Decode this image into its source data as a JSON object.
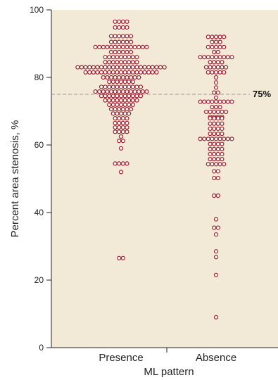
{
  "chart_data": {
    "type": "scatter",
    "style": "dot-plot",
    "xlabel": "ML pattern",
    "ylabel": "Percent area stenosis, %",
    "ylim": [
      0,
      100
    ],
    "yticks": [
      0,
      20,
      40,
      60,
      80,
      100
    ],
    "categories": [
      "Presence",
      "Absence"
    ],
    "reference_line": {
      "value": 75,
      "label": "75%",
      "style": "dashed"
    },
    "background_color": "#f2ead6",
    "marker_color": "#a01b2a",
    "series": [
      {
        "category": "Presence",
        "bins": [
          {
            "y": 96.5,
            "count": 4
          },
          {
            "y": 94.8,
            "count": 4
          },
          {
            "y": 92.2,
            "count": 6
          },
          {
            "y": 90.5,
            "count": 6
          },
          {
            "y": 89.0,
            "count": 14
          },
          {
            "y": 87.5,
            "count": 6
          },
          {
            "y": 86.0,
            "count": 9
          },
          {
            "y": 84.5,
            "count": 9
          },
          {
            "y": 83.0,
            "count": 23
          },
          {
            "y": 81.5,
            "count": 19
          },
          {
            "y": 80.0,
            "count": 10
          },
          {
            "y": 78.7,
            "count": 7
          },
          {
            "y": 77.2,
            "count": 11
          },
          {
            "y": 75.8,
            "count": 14
          },
          {
            "y": 74.5,
            "count": 11
          },
          {
            "y": 73.2,
            "count": 9
          },
          {
            "y": 71.9,
            "count": 7
          },
          {
            "y": 70.6,
            "count": 6
          },
          {
            "y": 69.3,
            "count": 5
          },
          {
            "y": 67.9,
            "count": 4
          },
          {
            "y": 66.5,
            "count": 4
          },
          {
            "y": 65.2,
            "count": 4
          },
          {
            "y": 63.9,
            "count": 4
          },
          {
            "y": 62.5,
            "count": 1
          },
          {
            "y": 61.2,
            "count": 2
          },
          {
            "y": 59.0,
            "count": 1
          },
          {
            "y": 54.5,
            "count": 4
          },
          {
            "y": 52.0,
            "count": 1
          },
          {
            "y": 26.5,
            "count": 2
          }
        ]
      },
      {
        "category": "Absence",
        "bins": [
          {
            "y": 92.0,
            "count": 5
          },
          {
            "y": 90.5,
            "count": 3
          },
          {
            "y": 89.0,
            "count": 5
          },
          {
            "y": 87.5,
            "count": 2
          },
          {
            "y": 86.0,
            "count": 9
          },
          {
            "y": 84.5,
            "count": 4
          },
          {
            "y": 83.0,
            "count": 6
          },
          {
            "y": 81.5,
            "count": 5
          },
          {
            "y": 80.0,
            "count": 1
          },
          {
            "y": 78.5,
            "count": 1
          },
          {
            "y": 77.0,
            "count": 1
          },
          {
            "y": 75.5,
            "count": 2
          },
          {
            "y": 74.0,
            "count": 1
          },
          {
            "y": 72.8,
            "count": 9
          },
          {
            "y": 71.2,
            "count": 3
          },
          {
            "y": 69.8,
            "count": 6
          },
          {
            "y": 68.3,
            "count": 4
          },
          {
            "y": 67.9,
            "count": 4
          },
          {
            "y": 66.3,
            "count": 4
          },
          {
            "y": 64.8,
            "count": 4
          },
          {
            "y": 63.3,
            "count": 4
          },
          {
            "y": 61.8,
            "count": 9
          },
          {
            "y": 60.3,
            "count": 4
          },
          {
            "y": 58.8,
            "count": 4
          },
          {
            "y": 57.3,
            "count": 4
          },
          {
            "y": 55.8,
            "count": 4
          },
          {
            "y": 54.3,
            "count": 5
          },
          {
            "y": 52.2,
            "count": 2
          },
          {
            "y": 50.2,
            "count": 2
          },
          {
            "y": 45.0,
            "count": 2
          },
          {
            "y": 38.0,
            "count": 1
          },
          {
            "y": 35.5,
            "count": 2
          },
          {
            "y": 33.5,
            "count": 1
          },
          {
            "y": 28.5,
            "count": 1
          },
          {
            "y": 26.8,
            "count": 1
          },
          {
            "y": 21.5,
            "count": 1
          },
          {
            "y": 9.0,
            "count": 1
          }
        ]
      }
    ]
  }
}
